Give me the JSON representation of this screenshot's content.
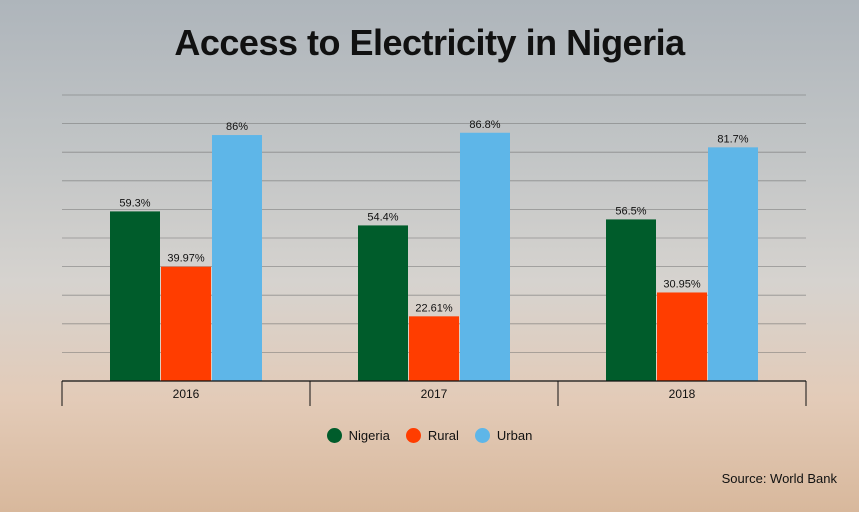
{
  "chart_data": {
    "type": "bar",
    "title": "Access to Electricity in Nigeria",
    "categories": [
      "2016",
      "2017",
      "2018"
    ],
    "series": [
      {
        "name": "Nigeria",
        "color": "#005c2b",
        "values": [
          59.3,
          54.4,
          56.5
        ],
        "labels": [
          "59.3%",
          "54.4%",
          "56.5%"
        ]
      },
      {
        "name": "Rural",
        "color": "#ff3d00",
        "values": [
          39.97,
          22.61,
          30.95
        ],
        "labels": [
          "39.97%",
          "22.61%",
          "30.95%"
        ]
      },
      {
        "name": "Urban",
        "color": "#5eb6e8",
        "values": [
          86,
          86.8,
          81.7
        ],
        "labels": [
          "86%",
          "86.8%",
          "81.7%"
        ]
      }
    ],
    "ylim": [
      0,
      100
    ],
    "grid": true,
    "legend_position": "bottom"
  },
  "source": "Source: World Bank"
}
